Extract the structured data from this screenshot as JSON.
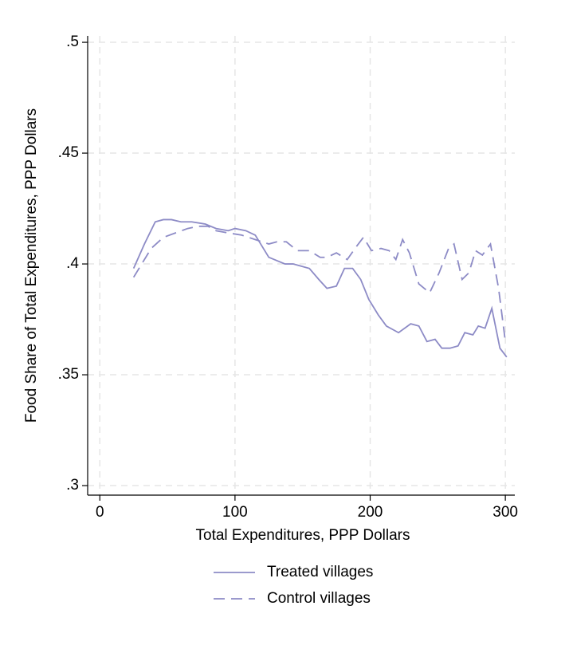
{
  "chart_data": {
    "type": "line",
    "x_label": "Total Expenditures, PPP Dollars",
    "y_label": "Food Share of Total Expenditures, PPP Dollars",
    "xlim": [
      -9,
      307
    ],
    "ylim": [
      0.2957,
      0.5029
    ],
    "xticks": [
      0,
      100,
      200,
      300
    ],
    "yticks": [
      {
        "value": 0.3,
        "label": ".3"
      },
      {
        "value": 0.35,
        "label": ".35"
      },
      {
        "value": 0.4,
        "label": ".4"
      },
      {
        "value": 0.45,
        "label": ".45"
      },
      {
        "value": 0.5,
        "label": ".5"
      }
    ],
    "grid": true,
    "legend": "bottom",
    "series": [
      {
        "name": "Treated villages",
        "color": "#8d8bc6",
        "dash": "solid",
        "x": [
          25,
          33,
          41,
          47,
          53,
          60,
          68,
          78,
          86,
          95,
          100,
          108,
          115,
          125,
          137,
          143,
          155,
          162,
          168,
          175,
          181,
          187,
          193,
          199,
          206,
          212,
          221,
          230,
          236,
          242,
          248,
          253,
          259,
          265,
          270,
          276,
          280,
          285,
          290,
          296,
          301
        ],
        "values": [
          0.398,
          0.409,
          0.419,
          0.42,
          0.42,
          0.419,
          0.419,
          0.418,
          0.416,
          0.415,
          0.416,
          0.415,
          0.413,
          0.403,
          0.4,
          0.4,
          0.398,
          0.393,
          0.389,
          0.39,
          0.398,
          0.398,
          0.393,
          0.384,
          0.377,
          0.372,
          0.369,
          0.373,
          0.372,
          0.365,
          0.366,
          0.362,
          0.362,
          0.363,
          0.369,
          0.368,
          0.372,
          0.371,
          0.38,
          0.362,
          0.358
        ]
      },
      {
        "name": "Control villages",
        "color": "#8d8bc6",
        "dash": "dashed",
        "x": [
          25,
          30,
          38,
          47,
          56,
          65,
          73,
          80,
          86,
          95,
          105,
          115,
          125,
          131,
          138,
          146,
          155,
          163,
          168,
          175,
          183,
          190,
          195,
          201,
          208,
          214,
          219,
          224,
          229,
          236,
          244,
          251,
          258,
          262,
          268,
          273,
          278,
          283,
          289,
          295,
          300
        ],
        "values": [
          0.394,
          0.399,
          0.407,
          0.412,
          0.414,
          0.416,
          0.417,
          0.417,
          0.415,
          0.414,
          0.413,
          0.411,
          0.409,
          0.41,
          0.41,
          0.406,
          0.406,
          0.403,
          0.403,
          0.405,
          0.402,
          0.408,
          0.412,
          0.406,
          0.407,
          0.406,
          0.402,
          0.411,
          0.405,
          0.391,
          0.387,
          0.396,
          0.407,
          0.409,
          0.393,
          0.396,
          0.406,
          0.404,
          0.409,
          0.389,
          0.365
        ]
      }
    ]
  }
}
